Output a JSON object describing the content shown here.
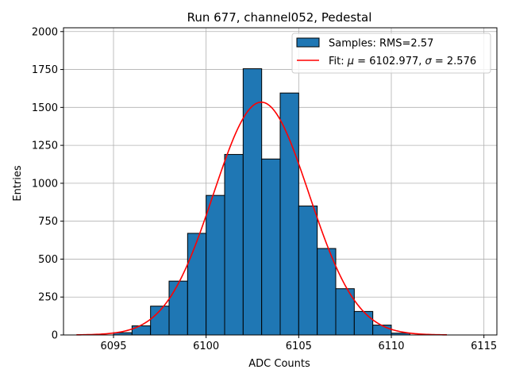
{
  "chart_data": {
    "type": "bar",
    "title": "Run 677, channel052, Pedestal",
    "xlabel": "ADC Counts",
    "ylabel": "Entries",
    "xlim": [
      6092.3,
      6115.7
    ],
    "ylim": [
      0,
      2025
    ],
    "grid": true,
    "legend_position": "top-right",
    "x_ticks": [
      6095,
      6100,
      6105,
      6110,
      6115
    ],
    "y_ticks": [
      0,
      250,
      500,
      750,
      1000,
      1250,
      1500,
      1750,
      2000
    ],
    "x_tick_labels": [
      "6095",
      "6100",
      "6105",
      "6110",
      "6115"
    ],
    "y_tick_labels": [
      "0",
      "250",
      "500",
      "750",
      "1000",
      "1250",
      "1500",
      "1750",
      "2000"
    ],
    "bar_color": "#1f77b4",
    "bar_edge_color": "#000000",
    "fit_color": "#ff0000",
    "legend": {
      "samples_label": "Samples: RMS=2.57",
      "fit_label_prefix": "Fit: ",
      "mu_symbol": "μ",
      "fit_label_mid": " = 6102.977, ",
      "sigma_symbol": "σ",
      "fit_label_end": " = 2.576"
    },
    "series": [
      {
        "name": "Samples: RMS=2.57",
        "bin_edges": [
          6095,
          6096,
          6097,
          6098,
          6099,
          6100,
          6101,
          6102,
          6103,
          6104,
          6105,
          6106,
          6107,
          6108,
          6109,
          6110,
          6111
        ],
        "counts": [
          15,
          60,
          190,
          355,
          670,
          920,
          1190,
          1755,
          1160,
          1595,
          850,
          570,
          305,
          155,
          65,
          12
        ]
      },
      {
        "name": "Fit: μ = 6102.977, σ = 2.576",
        "type": "line",
        "mu": 6102.977,
        "sigma": 2.576,
        "amplitude": 1535,
        "x_range": [
          6093,
          6113
        ]
      }
    ]
  }
}
